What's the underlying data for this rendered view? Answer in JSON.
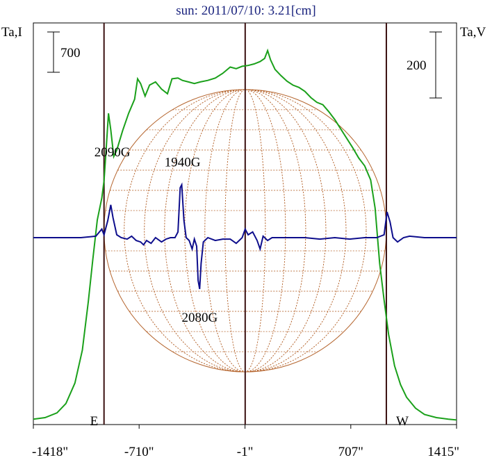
{
  "chart_data": {
    "type": "line",
    "title": "sun: 2011/07/10: 3.21[cm]",
    "left_axis_label": "Ta,I",
    "right_axis_label": "Ta,V",
    "left_scale_bar": "700",
    "right_scale_bar": "200",
    "xlim": [
      -1418,
      1415
    ],
    "x_ticks": [
      {
        "value": -1418,
        "label": "-1418\""
      },
      {
        "value": -710,
        "label": "-710\""
      },
      {
        "value": -1,
        "label": "-1\""
      },
      {
        "value": 707,
        "label": "707\""
      },
      {
        "value": 1415,
        "label": "1415\""
      }
    ],
    "limb_markers": [
      {
        "x": -945,
        "label": "E"
      },
      {
        "x": 945,
        "label": "W"
      }
    ],
    "center_marker_x": 0,
    "disk_radius_arcsec": 945,
    "series": [
      {
        "name": "Ta,I",
        "color": "#1aa01a",
        "y_range": [
          0,
          2450
        ],
        "points": [
          [
            -1418,
            30
          ],
          [
            -1340,
            40
          ],
          [
            -1260,
            70
          ],
          [
            -1200,
            130
          ],
          [
            -1140,
            260
          ],
          [
            -1090,
            470
          ],
          [
            -1050,
            780
          ],
          [
            -1020,
            1050
          ],
          [
            -990,
            1300
          ],
          [
            -960,
            1440
          ],
          [
            -945,
            1550
          ],
          [
            -930,
            1760
          ],
          [
            -915,
            1980
          ],
          [
            -900,
            1875
          ],
          [
            -880,
            1705
          ],
          [
            -860,
            1745
          ],
          [
            -820,
            1870
          ],
          [
            -780,
            1980
          ],
          [
            -740,
            2070
          ],
          [
            -720,
            2200
          ],
          [
            -700,
            2170
          ],
          [
            -670,
            2090
          ],
          [
            -640,
            2160
          ],
          [
            -600,
            2180
          ],
          [
            -560,
            2135
          ],
          [
            -520,
            2105
          ],
          [
            -490,
            2200
          ],
          [
            -450,
            2205
          ],
          [
            -420,
            2190
          ],
          [
            -380,
            2180
          ],
          [
            -340,
            2170
          ],
          [
            -300,
            2180
          ],
          [
            -250,
            2190
          ],
          [
            -200,
            2205
          ],
          [
            -150,
            2235
          ],
          [
            -100,
            2275
          ],
          [
            -60,
            2265
          ],
          [
            -20,
            2280
          ],
          [
            20,
            2285
          ],
          [
            60,
            2295
          ],
          [
            100,
            2310
          ],
          [
            130,
            2330
          ],
          [
            150,
            2380
          ],
          [
            170,
            2320
          ],
          [
            200,
            2260
          ],
          [
            240,
            2220
          ],
          [
            280,
            2185
          ],
          [
            320,
            2160
          ],
          [
            360,
            2145
          ],
          [
            400,
            2120
          ],
          [
            440,
            2080
          ],
          [
            480,
            2050
          ],
          [
            520,
            2035
          ],
          [
            560,
            1990
          ],
          [
            600,
            1940
          ],
          [
            640,
            1880
          ],
          [
            680,
            1820
          ],
          [
            720,
            1760
          ],
          [
            760,
            1695
          ],
          [
            800,
            1645
          ],
          [
            840,
            1555
          ],
          [
            870,
            1375
          ],
          [
            900,
            1025
          ],
          [
            930,
            790
          ],
          [
            960,
            570
          ],
          [
            1000,
            370
          ],
          [
            1040,
            250
          ],
          [
            1080,
            170
          ],
          [
            1140,
            100
          ],
          [
            1200,
            60
          ],
          [
            1280,
            40
          ],
          [
            1360,
            30
          ],
          [
            1415,
            25
          ]
        ]
      },
      {
        "name": "Ta,V",
        "color": "#0d0d8c",
        "y_range": [
          -280,
          380
        ],
        "points": [
          [
            -1418,
            0
          ],
          [
            -1300,
            0
          ],
          [
            -1200,
            0
          ],
          [
            -1100,
            0
          ],
          [
            -1000,
            5
          ],
          [
            -960,
            30
          ],
          [
            -945,
            10
          ],
          [
            -920,
            60
          ],
          [
            -900,
            115
          ],
          [
            -885,
            70
          ],
          [
            -860,
            10
          ],
          [
            -830,
            0
          ],
          [
            -790,
            -5
          ],
          [
            -760,
            5
          ],
          [
            -730,
            -10
          ],
          [
            -700,
            -15
          ],
          [
            -680,
            -25
          ],
          [
            -660,
            -10
          ],
          [
            -630,
            -20
          ],
          [
            -600,
            0
          ],
          [
            -560,
            -15
          ],
          [
            -530,
            -5
          ],
          [
            -500,
            0
          ],
          [
            -470,
            0
          ],
          [
            -450,
            20
          ],
          [
            -435,
            175
          ],
          [
            -425,
            185
          ],
          [
            -410,
            60
          ],
          [
            -395,
            0
          ],
          [
            -375,
            -10
          ],
          [
            -355,
            -40
          ],
          [
            -340,
            -5
          ],
          [
            -325,
            -30
          ],
          [
            -315,
            -150
          ],
          [
            -305,
            -180
          ],
          [
            -295,
            -90
          ],
          [
            -280,
            -15
          ],
          [
            -250,
            0
          ],
          [
            -200,
            -10
          ],
          [
            -150,
            -5
          ],
          [
            -100,
            -5
          ],
          [
            -60,
            -20
          ],
          [
            -40,
            -10
          ],
          [
            -20,
            0
          ],
          [
            0,
            30
          ],
          [
            20,
            10
          ],
          [
            50,
            20
          ],
          [
            80,
            -10
          ],
          [
            100,
            -40
          ],
          [
            120,
            5
          ],
          [
            150,
            -10
          ],
          [
            180,
            0
          ],
          [
            220,
            0
          ],
          [
            300,
            0
          ],
          [
            400,
            0
          ],
          [
            500,
            -5
          ],
          [
            600,
            0
          ],
          [
            700,
            -5
          ],
          [
            800,
            0
          ],
          [
            880,
            0
          ],
          [
            930,
            10
          ],
          [
            950,
            90
          ],
          [
            970,
            55
          ],
          [
            990,
            0
          ],
          [
            1020,
            -15
          ],
          [
            1060,
            0
          ],
          [
            1100,
            5
          ],
          [
            1200,
            0
          ],
          [
            1300,
            0
          ],
          [
            1415,
            0
          ]
        ]
      }
    ],
    "annotations": [
      {
        "text": "2090G",
        "x": -1010,
        "y": 285
      },
      {
        "text": "1940G",
        "x": -540,
        "y": 250
      },
      {
        "text": "2080G",
        "x": -425,
        "y": -295
      }
    ]
  }
}
